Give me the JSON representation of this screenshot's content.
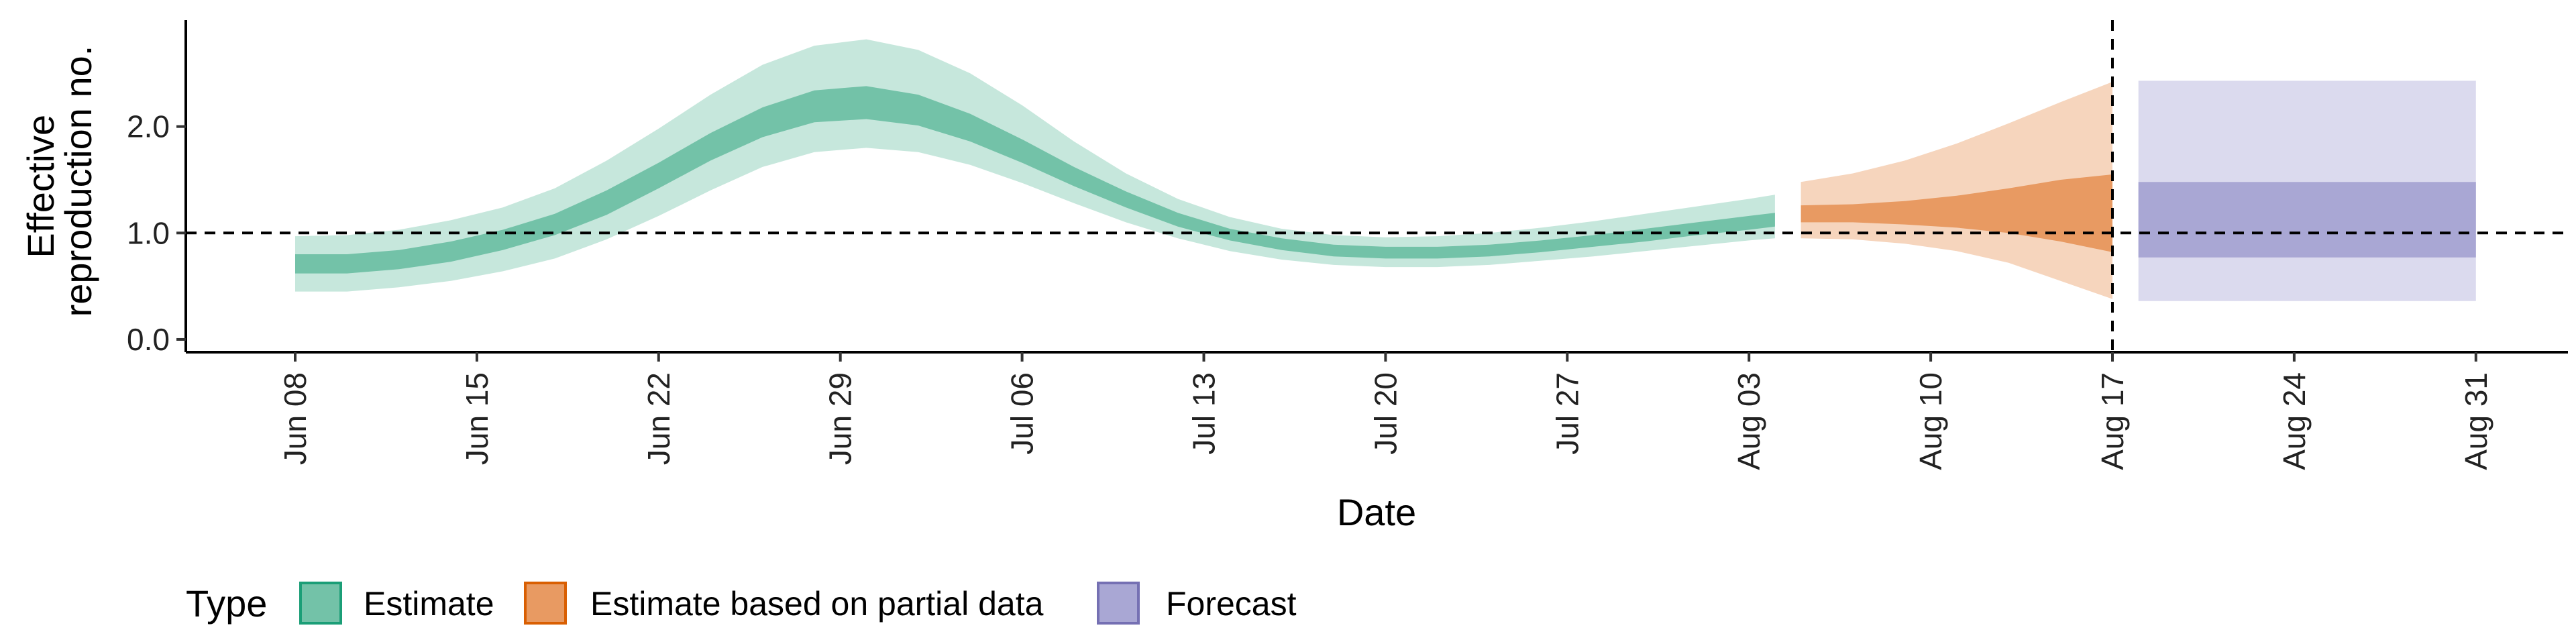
{
  "chart_data": {
    "type": "area",
    "xlabel": "Date",
    "ylabel_lines": [
      "Effective",
      "reproduction no."
    ],
    "y_ticks": [
      0.0,
      1.0,
      2.0
    ],
    "y_tick_labels": [
      "0.0",
      "1.0",
      "2.0"
    ],
    "ylim": [
      -0.12,
      3.0
    ],
    "x_date_range": [
      "2020-06-02",
      "2020-09-02"
    ],
    "x_ticks": [
      "2020-06-08",
      "2020-06-15",
      "2020-06-22",
      "2020-06-29",
      "2020-07-06",
      "2020-07-13",
      "2020-07-20",
      "2020-07-27",
      "2020-08-03",
      "2020-08-10",
      "2020-08-17",
      "2020-08-24",
      "2020-08-31"
    ],
    "x_tick_labels": [
      "Jun 08",
      "Jun 15",
      "Jun 22",
      "Jun 29",
      "Jul 06",
      "Jul 13",
      "Jul 20",
      "Jul 27",
      "Aug 03",
      "Aug 10",
      "Aug 17",
      "Aug 24",
      "Aug 31"
    ],
    "reference_hline": 1.0,
    "reference_vline": "2020-08-17",
    "legend": {
      "title": "Type",
      "placement": "bottom-left",
      "items": [
        {
          "label": "Estimate",
          "fill": "#73c2a8",
          "stroke": "#1b9e77"
        },
        {
          "label": "Estimate based on partial data",
          "fill": "#e89a62",
          "stroke": "#d95f02"
        },
        {
          "label": "Forecast",
          "fill": "#a9a7d4",
          "stroke": "#7570b3"
        }
      ]
    },
    "series": [
      {
        "name": "Estimate",
        "outer_color": "#c6e7dc",
        "inner_color": "#73c2a8",
        "points": [
          {
            "date": "2020-06-08",
            "lo90": 0.45,
            "lo50": 0.62,
            "hi50": 0.8,
            "hi90": 0.97
          },
          {
            "date": "2020-06-10",
            "lo90": 0.45,
            "lo50": 0.62,
            "hi50": 0.8,
            "hi90": 0.98
          },
          {
            "date": "2020-06-12",
            "lo90": 0.49,
            "lo50": 0.66,
            "hi50": 0.84,
            "hi90": 1.03
          },
          {
            "date": "2020-06-14",
            "lo90": 0.55,
            "lo50": 0.73,
            "hi50": 0.92,
            "hi90": 1.12
          },
          {
            "date": "2020-06-16",
            "lo90": 0.64,
            "lo50": 0.84,
            "hi50": 1.03,
            "hi90": 1.24
          },
          {
            "date": "2020-06-18",
            "lo90": 0.76,
            "lo50": 0.98,
            "hi50": 1.18,
            "hi90": 1.42
          },
          {
            "date": "2020-06-20",
            "lo90": 0.94,
            "lo50": 1.17,
            "hi50": 1.4,
            "hi90": 1.68
          },
          {
            "date": "2020-06-22",
            "lo90": 1.16,
            "lo50": 1.42,
            "hi50": 1.66,
            "hi90": 1.98
          },
          {
            "date": "2020-06-24",
            "lo90": 1.4,
            "lo50": 1.68,
            "hi50": 1.94,
            "hi90": 2.3
          },
          {
            "date": "2020-06-26",
            "lo90": 1.62,
            "lo50": 1.9,
            "hi50": 2.18,
            "hi90": 2.58
          },
          {
            "date": "2020-06-28",
            "lo90": 1.76,
            "lo50": 2.04,
            "hi50": 2.34,
            "hi90": 2.76
          },
          {
            "date": "2020-06-30",
            "lo90": 1.8,
            "lo50": 2.07,
            "hi50": 2.38,
            "hi90": 2.82
          },
          {
            "date": "2020-07-02",
            "lo90": 1.76,
            "lo50": 2.01,
            "hi50": 2.3,
            "hi90": 2.72
          },
          {
            "date": "2020-07-04",
            "lo90": 1.64,
            "lo50": 1.86,
            "hi50": 2.12,
            "hi90": 2.5
          },
          {
            "date": "2020-07-06",
            "lo90": 1.47,
            "lo50": 1.66,
            "hi50": 1.88,
            "hi90": 2.2
          },
          {
            "date": "2020-07-08",
            "lo90": 1.28,
            "lo50": 1.44,
            "hi50": 1.62,
            "hi90": 1.86
          },
          {
            "date": "2020-07-10",
            "lo90": 1.1,
            "lo50": 1.24,
            "hi50": 1.39,
            "hi90": 1.56
          },
          {
            "date": "2020-07-12",
            "lo90": 0.95,
            "lo50": 1.06,
            "hi50": 1.19,
            "hi90": 1.32
          },
          {
            "date": "2020-07-14",
            "lo90": 0.83,
            "lo50": 0.93,
            "hi50": 1.04,
            "hi90": 1.15
          },
          {
            "date": "2020-07-16",
            "lo90": 0.75,
            "lo50": 0.84,
            "hi50": 0.95,
            "hi90": 1.04
          },
          {
            "date": "2020-07-18",
            "lo90": 0.7,
            "lo50": 0.78,
            "hi50": 0.89,
            "hi90": 0.98
          },
          {
            "date": "2020-07-20",
            "lo90": 0.68,
            "lo50": 0.76,
            "hi50": 0.87,
            "hi90": 0.96
          },
          {
            "date": "2020-07-22",
            "lo90": 0.68,
            "lo50": 0.76,
            "hi50": 0.87,
            "hi90": 0.97
          },
          {
            "date": "2020-07-24",
            "lo90": 0.7,
            "lo50": 0.78,
            "hi50": 0.89,
            "hi90": 1.0
          },
          {
            "date": "2020-07-26",
            "lo90": 0.74,
            "lo50": 0.82,
            "hi50": 0.93,
            "hi90": 1.05
          },
          {
            "date": "2020-07-28",
            "lo90": 0.78,
            "lo50": 0.87,
            "hi50": 0.98,
            "hi90": 1.11
          },
          {
            "date": "2020-07-30",
            "lo90": 0.83,
            "lo50": 0.92,
            "hi50": 1.04,
            "hi90": 1.18
          },
          {
            "date": "2020-08-01",
            "lo90": 0.88,
            "lo50": 0.98,
            "hi50": 1.1,
            "hi90": 1.25
          },
          {
            "date": "2020-08-03",
            "lo90": 0.93,
            "lo50": 1.03,
            "hi50": 1.16,
            "hi90": 1.32
          },
          {
            "date": "2020-08-04",
            "lo90": 0.95,
            "lo50": 1.06,
            "hi50": 1.19,
            "hi90": 1.36
          }
        ]
      },
      {
        "name": "Estimate based on partial data",
        "outer_color": "#f6d5bd",
        "inner_color": "#e89a62",
        "points": [
          {
            "date": "2020-08-05",
            "lo90": 0.95,
            "lo50": 1.1,
            "hi50": 1.26,
            "hi90": 1.48
          },
          {
            "date": "2020-08-07",
            "lo90": 0.94,
            "lo50": 1.1,
            "hi50": 1.27,
            "hi90": 1.56
          },
          {
            "date": "2020-08-09",
            "lo90": 0.9,
            "lo50": 1.08,
            "hi50": 1.3,
            "hi90": 1.68
          },
          {
            "date": "2020-08-11",
            "lo90": 0.83,
            "lo50": 1.05,
            "hi50": 1.35,
            "hi90": 1.84
          },
          {
            "date": "2020-08-13",
            "lo90": 0.72,
            "lo50": 1.0,
            "hi50": 1.42,
            "hi90": 2.03
          },
          {
            "date": "2020-08-15",
            "lo90": 0.55,
            "lo50": 0.92,
            "hi50": 1.5,
            "hi90": 2.23
          },
          {
            "date": "2020-08-17",
            "lo90": 0.38,
            "lo50": 0.82,
            "hi50": 1.55,
            "hi90": 2.42
          }
        ]
      },
      {
        "name": "Forecast",
        "outer_color": "#dbdaee",
        "inner_color": "#a9a7d4",
        "points": [
          {
            "date": "2020-08-18",
            "lo90": 0.36,
            "lo50": 0.77,
            "hi50": 1.48,
            "hi90": 2.43
          },
          {
            "date": "2020-08-31",
            "lo90": 0.36,
            "lo50": 0.77,
            "hi50": 1.48,
            "hi90": 2.43
          }
        ]
      }
    ]
  }
}
